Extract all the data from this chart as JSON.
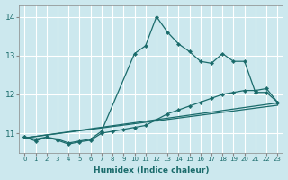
{
  "xlabel": "Humidex (Indice chaleur)",
  "ylabel": "",
  "xlim": [
    -0.5,
    23.5
  ],
  "ylim": [
    10.5,
    14.3
  ],
  "xticks": [
    0,
    1,
    2,
    3,
    4,
    5,
    6,
    7,
    8,
    9,
    10,
    11,
    12,
    13,
    14,
    15,
    16,
    17,
    18,
    19,
    20,
    21,
    22,
    23
  ],
  "yticks": [
    11,
    12,
    13,
    14
  ],
  "background_color": "#cce8ee",
  "grid_color": "#ffffff",
  "line_color": "#1a6b6b",
  "line1_x": [
    0,
    1,
    2,
    3,
    4,
    5,
    6,
    7,
    10,
    11,
    12,
    13,
    14,
    15,
    16,
    17,
    18,
    19,
    20,
    21,
    22,
    23
  ],
  "line1_y": [
    10.9,
    10.8,
    10.9,
    10.85,
    10.75,
    10.8,
    10.85,
    11.05,
    13.05,
    13.25,
    14.0,
    13.6,
    13.3,
    13.1,
    12.85,
    12.8,
    13.05,
    12.85,
    12.85,
    12.05,
    12.05,
    11.8
  ],
  "line2_x": [
    0,
    1,
    2,
    3,
    4,
    5,
    6,
    7,
    8,
    9,
    10,
    11,
    12,
    13,
    14,
    15,
    16,
    17,
    18,
    19,
    20,
    21,
    22,
    23
  ],
  "line2_y": [
    10.9,
    10.85,
    10.9,
    10.82,
    10.72,
    10.78,
    10.82,
    11.0,
    11.05,
    11.1,
    11.15,
    11.2,
    11.35,
    11.5,
    11.6,
    11.7,
    11.8,
    11.9,
    12.0,
    12.05,
    12.1,
    12.1,
    12.15,
    11.8
  ],
  "line3_x": [
    0,
    23
  ],
  "line3_y": [
    10.88,
    11.78
  ],
  "line4_x": [
    0,
    23
  ],
  "line4_y": [
    10.88,
    11.72
  ]
}
